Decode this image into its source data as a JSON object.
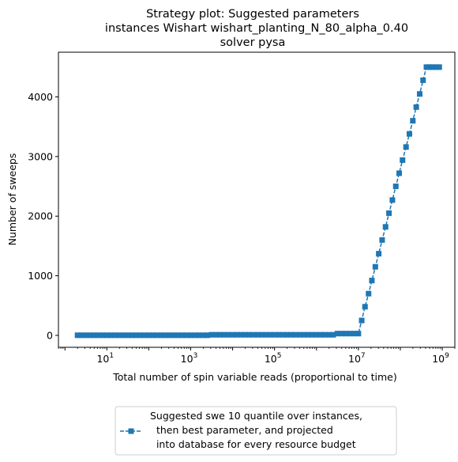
{
  "chart_data": {
    "type": "line",
    "title": [
      "Strategy plot: Suggested parameters",
      "instances Wishart wishart_planting_N_80_alpha_0.40",
      "solver pysa"
    ],
    "xlabel": "Total number of spin variable reads (proportional to time)",
    "ylabel": "Number of sweeps",
    "xscale": "log",
    "xlim": [
      0.7,
      2000000000
    ],
    "ylim": [
      -200,
      4750
    ],
    "x_ticks": [
      {
        "value": 10,
        "base": "10",
        "exp": "1"
      },
      {
        "value": 1000,
        "base": "10",
        "exp": "3"
      },
      {
        "value": 100000,
        "base": "10",
        "exp": "5"
      },
      {
        "value": 10000000,
        "base": "10",
        "exp": "7"
      },
      {
        "value": 1000000000,
        "base": "10",
        "exp": "9"
      }
    ],
    "y_ticks": [
      {
        "value": 0,
        "label": "0"
      },
      {
        "value": 1000,
        "label": "1000"
      },
      {
        "value": 2000,
        "label": "2000"
      },
      {
        "value": 3000,
        "label": "3000"
      },
      {
        "value": 4000,
        "label": "4000"
      }
    ],
    "grid": false,
    "legend_position": "below-center",
    "series": [
      {
        "name": "Suggested swe 10 quantile over instances,\n then best parameter, and projected\n into database for every resource budget",
        "color": "#1f77b4",
        "marker": "square",
        "linestyle": "dashed",
        "points": [
          [
            2.0,
            2
          ],
          [
            2.5,
            2
          ],
          [
            3.2,
            2
          ],
          [
            4.0,
            2
          ],
          [
            5.0,
            2
          ],
          [
            6.3,
            2
          ],
          [
            8.0,
            2
          ],
          [
            10,
            2
          ],
          [
            12.6,
            2
          ],
          [
            15.8,
            2
          ],
          [
            20,
            2
          ],
          [
            25,
            2
          ],
          [
            32,
            2
          ],
          [
            40,
            2
          ],
          [
            50,
            2
          ],
          [
            63,
            2
          ],
          [
            79,
            2
          ],
          [
            100,
            2
          ],
          [
            126,
            2
          ],
          [
            158,
            2
          ],
          [
            200,
            2
          ],
          [
            251,
            2
          ],
          [
            316,
            2
          ],
          [
            398,
            2
          ],
          [
            501,
            2
          ],
          [
            631,
            2
          ],
          [
            794,
            2
          ],
          [
            1000,
            2
          ],
          [
            1260,
            2
          ],
          [
            1580,
            2
          ],
          [
            2000,
            2
          ],
          [
            2510,
            2
          ],
          [
            3160,
            10
          ],
          [
            3980,
            10
          ],
          [
            5010,
            10
          ],
          [
            6310,
            10
          ],
          [
            7940,
            10
          ],
          [
            10000,
            10
          ],
          [
            12600,
            10
          ],
          [
            15800,
            10
          ],
          [
            20000,
            10
          ],
          [
            25100,
            10
          ],
          [
            31600,
            10
          ],
          [
            39800,
            10
          ],
          [
            50100,
            10
          ],
          [
            63100,
            10
          ],
          [
            79400,
            10
          ],
          [
            100000,
            10
          ],
          [
            126000,
            10
          ],
          [
            158000,
            10
          ],
          [
            200000,
            10
          ],
          [
            251000,
            10
          ],
          [
            316000,
            10
          ],
          [
            398000,
            10
          ],
          [
            501000,
            10
          ],
          [
            631000,
            10
          ],
          [
            794000,
            10
          ],
          [
            1000000,
            10
          ],
          [
            1260000,
            10
          ],
          [
            1580000,
            10
          ],
          [
            2000000,
            10
          ],
          [
            2510000,
            10
          ],
          [
            3160000,
            30
          ],
          [
            3980000,
            30
          ],
          [
            5010000,
            30
          ],
          [
            6310000,
            30
          ],
          [
            7940000,
            30
          ],
          [
            10000000,
            30
          ],
          [
            12000000,
            250
          ],
          [
            14400000,
            480
          ],
          [
            17500000,
            700
          ],
          [
            21000000,
            920
          ],
          [
            25400000,
            1150
          ],
          [
            30600000,
            1370
          ],
          [
            36900000,
            1600
          ],
          [
            44500000,
            1820
          ],
          [
            53700000,
            2050
          ],
          [
            64800000,
            2270
          ],
          [
            78100000,
            2500
          ],
          [
            94100000,
            2720
          ],
          [
            113000000,
            2940
          ],
          [
            137000000,
            3160
          ],
          [
            165000000,
            3380
          ],
          [
            199000000,
            3600
          ],
          [
            240000000,
            3830
          ],
          [
            290000000,
            4050
          ],
          [
            349000000,
            4280
          ],
          [
            420000000,
            4500
          ],
          [
            490000000,
            4500
          ],
          [
            580000000,
            4500
          ],
          [
            700000000,
            4500
          ],
          [
            850000000,
            4500
          ]
        ]
      }
    ]
  }
}
